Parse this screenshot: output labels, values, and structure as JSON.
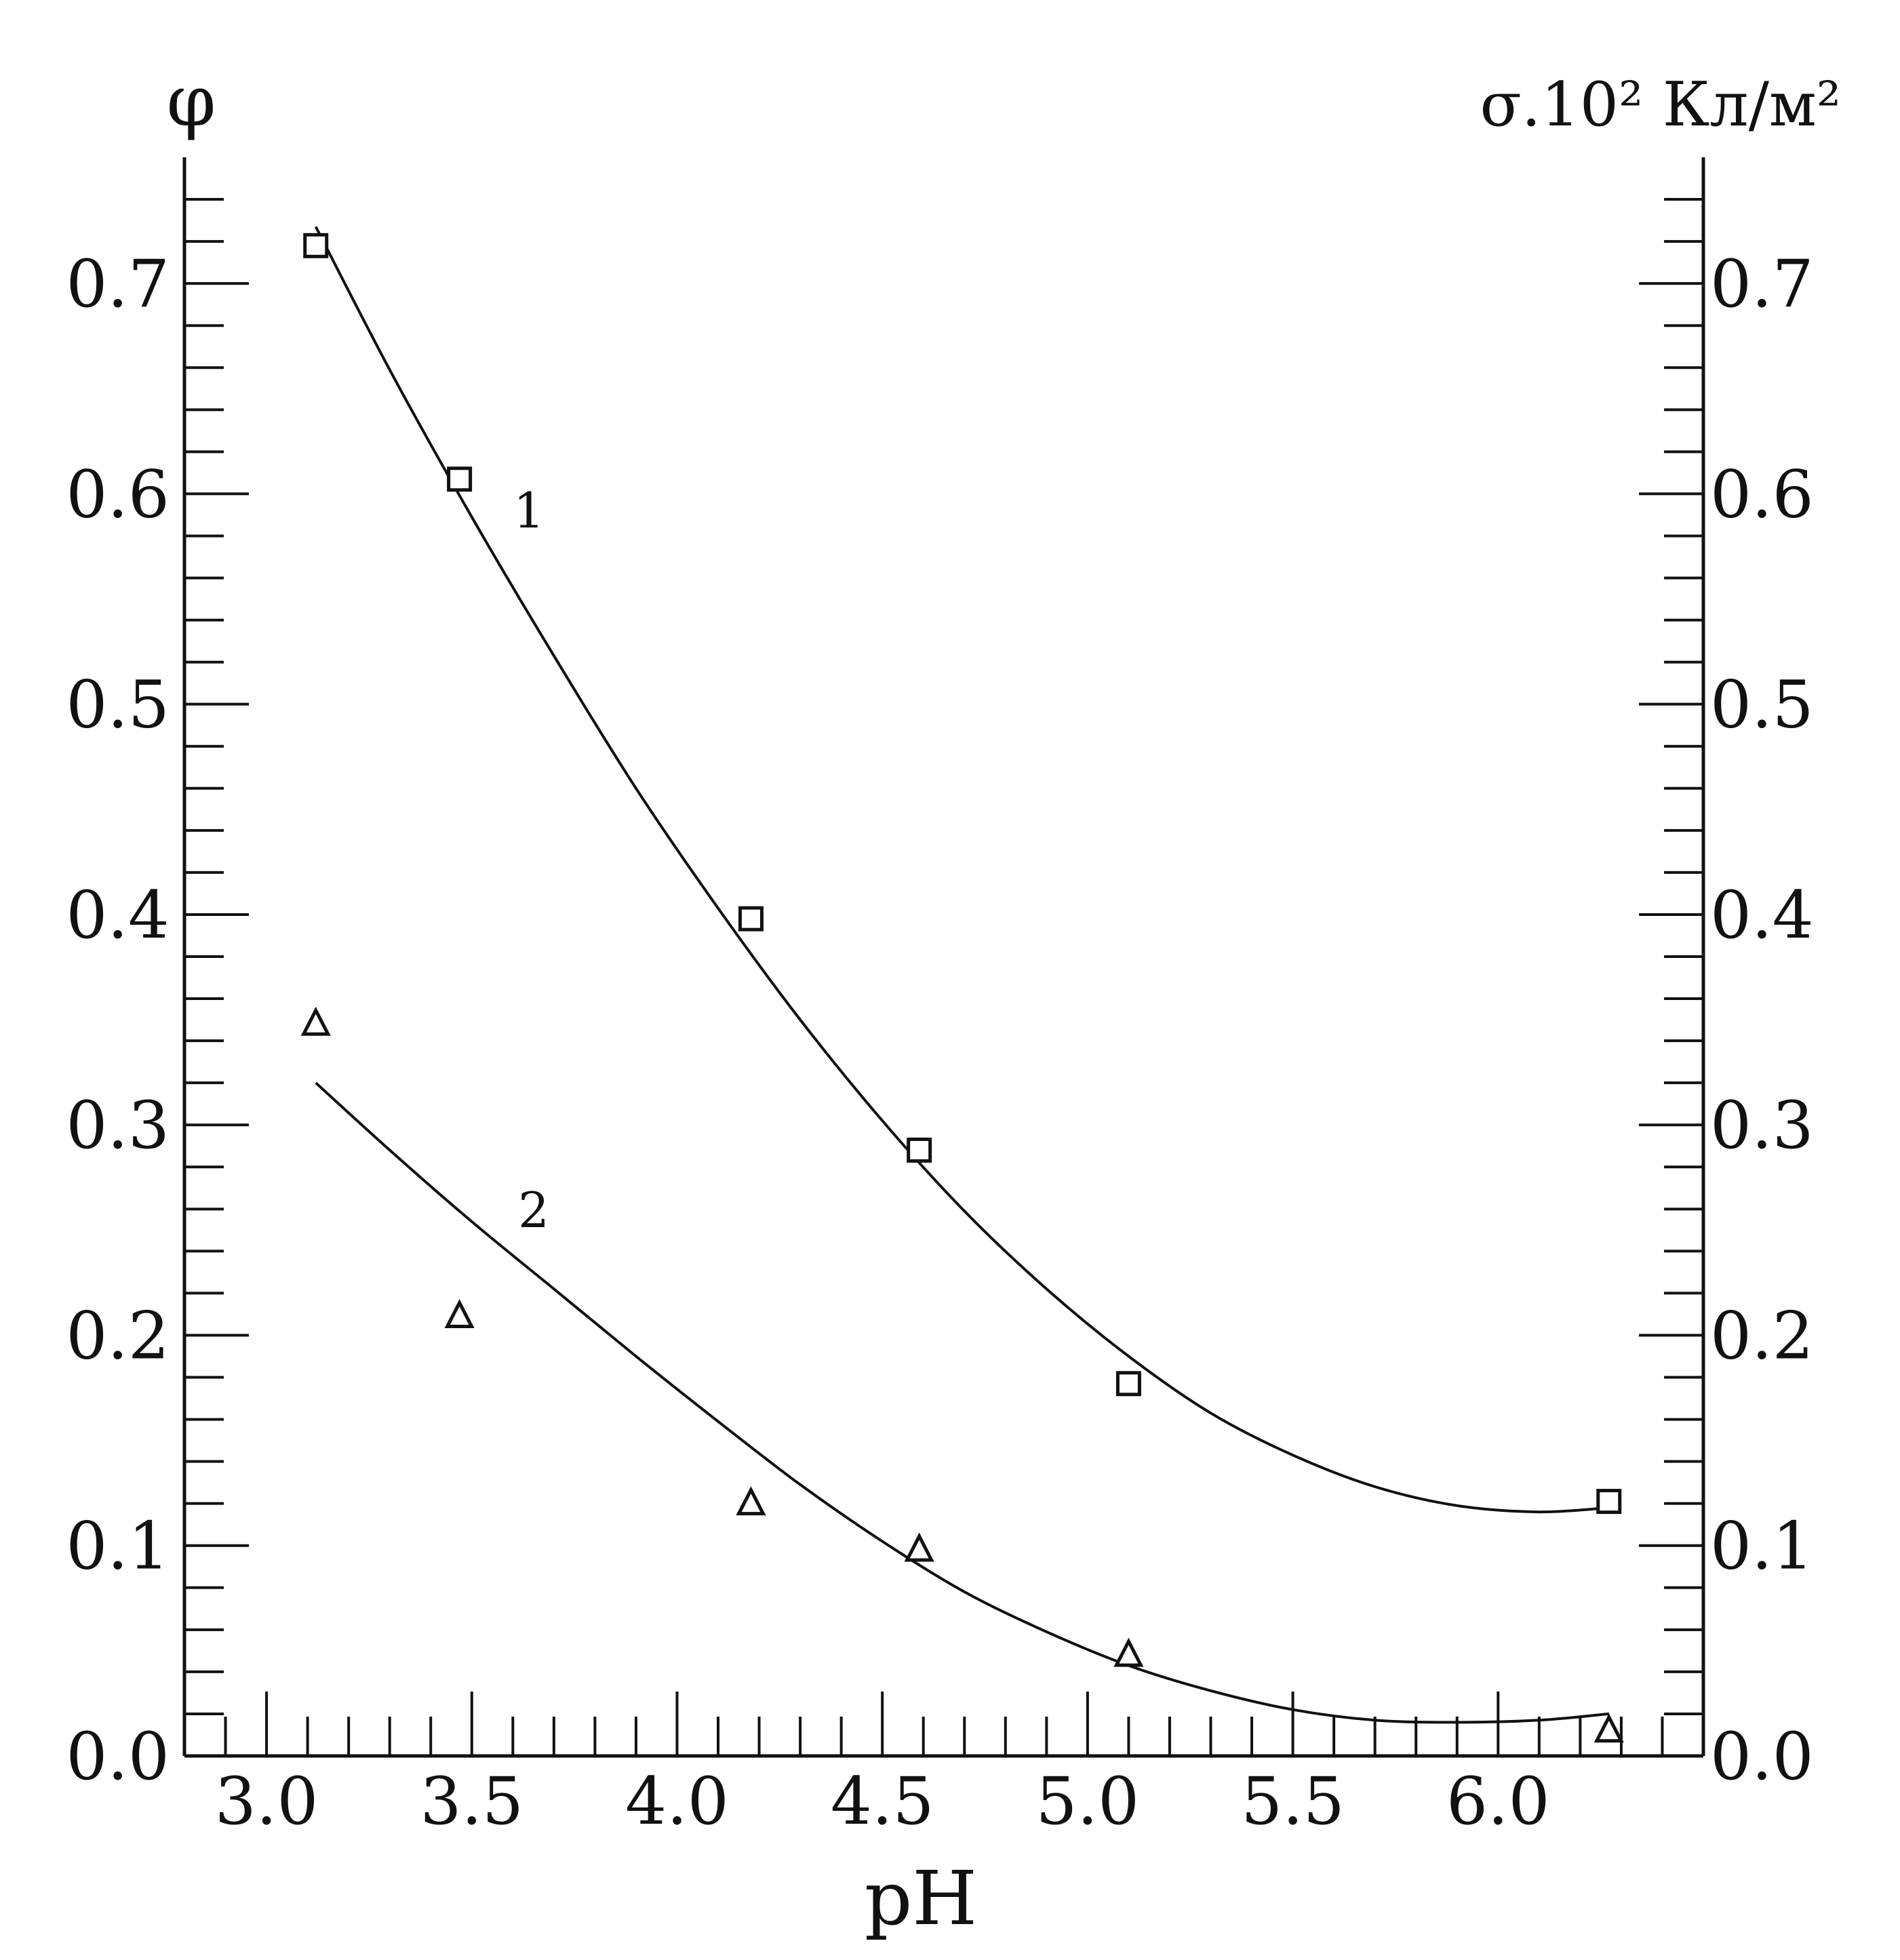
{
  "chart_data": {
    "type": "scatter",
    "title": "",
    "xlabel": "pH",
    "ylabel_left": "φ",
    "ylabel_right": "σ.10² Кл/м²",
    "xlim": [
      2.8,
      6.5
    ],
    "ylim": [
      0.0,
      0.76
    ],
    "x_ticks": [
      "3.0",
      "3.5",
      "4.0",
      "4.5",
      "5.0",
      "5.5",
      "6.0"
    ],
    "y_ticks": [
      "0.0",
      "0.1",
      "0.2",
      "0.3",
      "0.4",
      "0.5",
      "0.6",
      "0.7"
    ],
    "grid": false,
    "series": [
      {
        "name": "1",
        "marker": "square",
        "x": [
          3.12,
          3.47,
          4.18,
          4.59,
          5.1,
          6.27
        ],
        "y": [
          0.718,
          0.607,
          0.398,
          0.288,
          0.177,
          0.121
        ],
        "fit_x": [
          3.12,
          3.3,
          3.5,
          3.7,
          3.9,
          4.1,
          4.3,
          4.5,
          4.7,
          4.9,
          5.1,
          5.3,
          5.5,
          5.7,
          5.9,
          6.1,
          6.27
        ],
        "fit_y": [
          0.727,
          0.659,
          0.589,
          0.523,
          0.46,
          0.403,
          0.35,
          0.302,
          0.259,
          0.222,
          0.19,
          0.163,
          0.143,
          0.128,
          0.119,
          0.116,
          0.118
        ]
      },
      {
        "name": "2",
        "marker": "triangle",
        "x": [
          3.12,
          3.47,
          4.18,
          4.59,
          5.1,
          6.27
        ],
        "y": [
          0.348,
          0.209,
          0.12,
          0.098,
          0.048,
          0.012
        ],
        "fit_x": [
          3.12,
          3.3,
          3.5,
          3.7,
          3.9,
          4.1,
          4.3,
          4.5,
          4.7,
          4.9,
          5.1,
          5.3,
          5.5,
          5.7,
          5.9,
          6.1,
          6.27
        ],
        "fit_y": [
          0.32,
          0.288,
          0.254,
          0.222,
          0.19,
          0.159,
          0.129,
          0.102,
          0.078,
          0.059,
          0.043,
          0.031,
          0.022,
          0.017,
          0.016,
          0.017,
          0.02
        ]
      }
    ]
  }
}
